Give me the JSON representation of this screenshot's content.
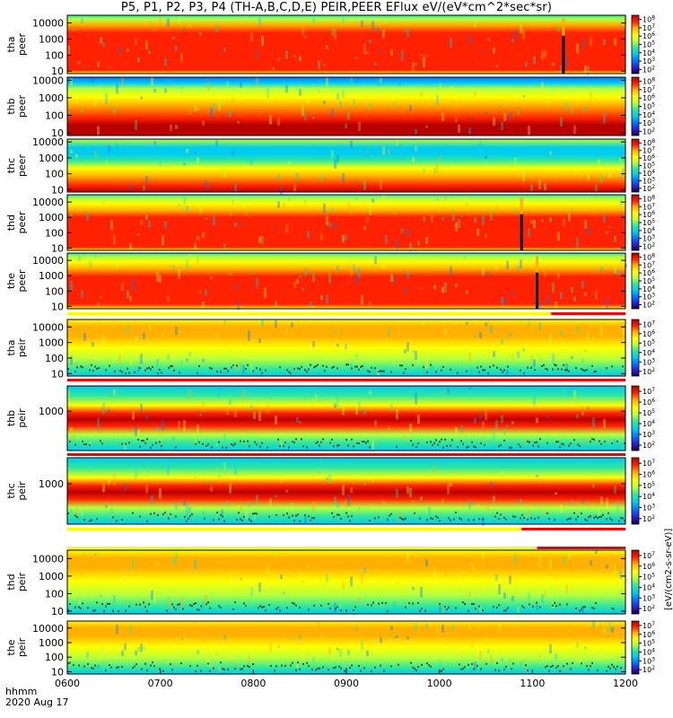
{
  "title": "P5, P1, P2, P3, P4 (TH-A,B,C,D,E) PEIR,PEER EFlux eV/(eV*cm^2*sec*sr)",
  "footer": {
    "time_axis_title": "hhmm",
    "date": "2020 Aug 17",
    "colorbar_unit": "[eV/(cm2-s-sr-eV)]"
  },
  "chart_data": [
    {
      "type": "heatmap",
      "id": "tha_peer",
      "ylabel": "tha peer",
      "yscale": "log",
      "ylim": [
        7,
        30000
      ],
      "yticks": [
        "10",
        "100",
        "1000",
        "10000"
      ],
      "ytick_values": [
        10,
        100,
        1000,
        10000
      ],
      "x_range": [
        "0600",
        "1200"
      ],
      "colorbar_ticks": [
        "10^2",
        "10^3",
        "10^4",
        "10^5",
        "10^6",
        "10^7",
        "10^8"
      ],
      "features": "intense band 30-3000 eV throughout; spike near 1120",
      "spike_time": "1120"
    },
    {
      "type": "heatmap",
      "id": "thb_peer",
      "ylabel": "thb peer",
      "yscale": "log",
      "ylim": [
        7,
        15000
      ],
      "yticks": [
        "10",
        "100",
        "1000",
        "10000"
      ],
      "ytick_values": [
        10,
        100,
        1000,
        10000
      ],
      "x_range": [
        "0600",
        "1200"
      ],
      "colorbar_ticks": [
        "10^2",
        "10^3",
        "10^4",
        "10^5",
        "10^6",
        "10^7",
        "10^8"
      ],
      "features": "steady layered spectrum"
    },
    {
      "type": "heatmap",
      "id": "thc_peer",
      "ylabel": "thc peer",
      "yscale": "log",
      "ylim": [
        7,
        15000
      ],
      "yticks": [
        "10",
        "100",
        "1000",
        "10000"
      ],
      "ytick_values": [
        10,
        100,
        1000,
        10000
      ],
      "x_range": [
        "0600",
        "1200"
      ],
      "colorbar_ticks": [
        "10^2",
        "10^3",
        "10^4",
        "10^5",
        "10^6",
        "10^7",
        "10^8"
      ],
      "features": "steady layered spectrum, noisy above 1000 eV"
    },
    {
      "type": "heatmap",
      "id": "thd_peer",
      "ylabel": "thd peer",
      "yscale": "log",
      "ylim": [
        7,
        30000
      ],
      "yticks": [
        "10",
        "100",
        "1000",
        "10000"
      ],
      "ytick_values": [
        10,
        100,
        1000,
        10000
      ],
      "x_range": [
        "0600",
        "1200"
      ],
      "colorbar_ticks": [
        "10^2",
        "10^3",
        "10^4",
        "10^5",
        "10^6",
        "10^7",
        "10^8"
      ],
      "features": "intense band; spike near 1053",
      "spike_time": "1053"
    },
    {
      "type": "heatmap",
      "id": "the_peer",
      "ylabel": "the peer",
      "yscale": "log",
      "ylim": [
        7,
        30000
      ],
      "yticks": [
        "10",
        "100",
        "1000",
        "10000"
      ],
      "ytick_values": [
        10,
        100,
        1000,
        10000
      ],
      "x_range": [
        "0600",
        "1200"
      ],
      "colorbar_ticks": [
        "10^2",
        "10^3",
        "10^4",
        "10^5",
        "10^6",
        "10^7",
        "10^8"
      ],
      "features": "band rises after 0650; spike near 1103",
      "spike_time": "1103"
    },
    {
      "type": "heatmap",
      "id": "tha_peir",
      "ylabel": "tha peir",
      "yscale": "log",
      "ylim": [
        7,
        30000
      ],
      "yticks": [
        "10",
        "100",
        "1000",
        "10000"
      ],
      "ytick_values": [
        10,
        100,
        1000,
        10000
      ],
      "x_range": [
        "0600",
        "1200"
      ],
      "colorbar_ticks": [
        "10^2",
        "10^3",
        "10^4",
        "10^5",
        "10^6",
        "10^7"
      ],
      "features": "broad orange band 300-10000 eV"
    },
    {
      "type": "heatmap",
      "id": "thb_peir",
      "ylabel": "thb peir",
      "yscale": "log",
      "ylim": [
        5,
        30000
      ],
      "yticks": [
        "1000"
      ],
      "ytick_values": [
        1000
      ],
      "x_range": [
        "0600",
        "1200"
      ],
      "colorbar_ticks": [
        "10^2",
        "10^3",
        "10^4",
        "10^5",
        "10^6",
        "10^7"
      ],
      "features": "dark red band near 500 eV"
    },
    {
      "type": "heatmap",
      "id": "thc_peir",
      "ylabel": "thc peir",
      "yscale": "log",
      "ylim": [
        5,
        30000
      ],
      "yticks": [
        "1000"
      ],
      "ytick_values": [
        1000
      ],
      "x_range": [
        "0600",
        "1200"
      ],
      "colorbar_ticks": [
        "10^2",
        "10^3",
        "10^4",
        "10^5",
        "10^6",
        "10^7"
      ],
      "features": "dark red band near 500 eV"
    },
    {
      "type": "heatmap",
      "id": "thd_peir",
      "ylabel": "thd peir",
      "yscale": "log",
      "ylim": [
        7,
        30000
      ],
      "yticks": [
        "10",
        "100",
        "1000",
        "10000"
      ],
      "ytick_values": [
        10,
        100,
        1000,
        10000
      ],
      "x_range": [
        "0600",
        "1200"
      ],
      "colorbar_ticks": [
        "10^2",
        "10^3",
        "10^4",
        "10^5",
        "10^6",
        "10^7"
      ],
      "features": "orange band 1000-10000 eV"
    },
    {
      "type": "heatmap",
      "id": "the_peir",
      "ylabel": "the peir",
      "yscale": "log",
      "ylim": [
        7,
        30000
      ],
      "yticks": [
        "10",
        "100",
        "1000",
        "10000"
      ],
      "ytick_values": [
        10,
        100,
        1000,
        10000
      ],
      "x_range": [
        "0600",
        "1200"
      ],
      "colorbar_ticks": [
        "10^2",
        "10^3",
        "10^4",
        "10^5",
        "10^6",
        "10^7"
      ],
      "features": "orange band 1000-10000 eV"
    }
  ],
  "x_axis": {
    "ticks": [
      "0600",
      "0700",
      "0800",
      "0900",
      "1000",
      "1100",
      "1200"
    ]
  },
  "mode_bars": [
    {
      "after_panel": "the_peer",
      "red_from": "1112",
      "red_to": "1200"
    },
    {
      "after_panel": "tha_peir",
      "red_from": "0600",
      "red_to": "1200"
    },
    {
      "after_panel": "thb_peir",
      "red_from": "0600",
      "red_to": "1200"
    },
    {
      "after_panel": "thc_peir",
      "red_from": "1053",
      "red_to": "1200"
    },
    {
      "after_panel": "thd_peir",
      "red_from": "1103",
      "red_to": "1200"
    }
  ],
  "colors": {
    "colormap": [
      "#1c0044",
      "#2e20d8",
      "#0078ff",
      "#00ccf0",
      "#2fe6a0",
      "#b8ff3c",
      "#ffff00",
      "#ffb000",
      "#ff2200",
      "#b80000"
    ]
  }
}
